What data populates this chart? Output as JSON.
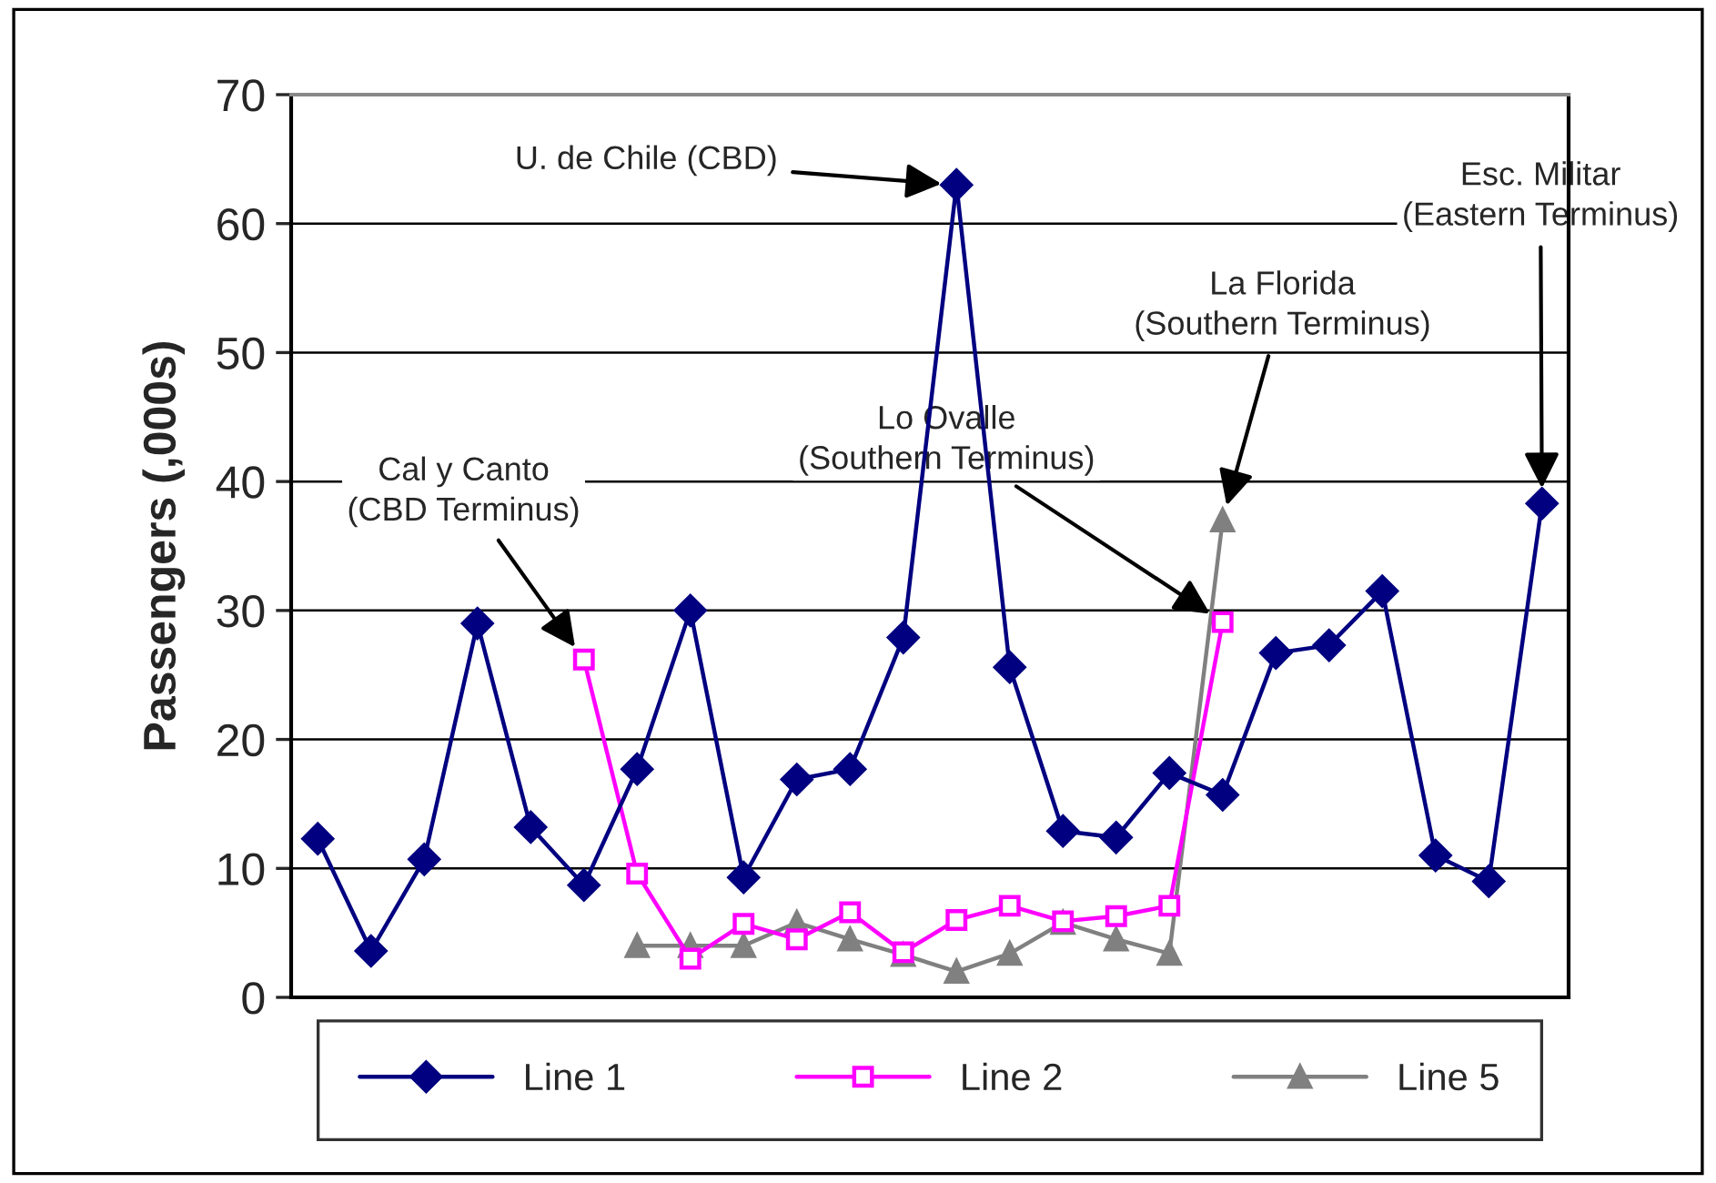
{
  "chart_data": {
    "type": "line",
    "ylabel": "Passengers (,000s)",
    "categories": [
      null,
      null,
      null,
      null,
      null,
      null,
      null,
      null,
      null,
      null,
      null,
      null,
      null,
      null,
      null,
      null,
      null,
      null,
      null,
      null,
      null,
      null,
      null,
      null
    ],
    "series": [
      {
        "name": "Line 1",
        "color": "#000080",
        "marker": "diamond",
        "values": [
          12.3,
          3.6,
          10.7,
          29,
          13.2,
          8.7,
          17.7,
          30,
          9.3,
          16.9,
          17.7,
          27.9,
          63,
          25.6,
          12.9,
          12.4,
          17.4,
          15.7,
          26.7,
          27.3,
          31.5,
          11,
          9,
          38.3
        ]
      },
      {
        "name": "Line 2",
        "color": "#ff00ff",
        "marker": "square",
        "values": [
          null,
          null,
          null,
          null,
          null,
          26.2,
          9.6,
          3,
          5.7,
          4.5,
          6.6,
          3.5,
          6,
          7.1,
          5.9,
          6.3,
          7.1,
          29.1,
          null,
          null,
          null,
          null,
          null,
          null
        ]
      },
      {
        "name": "Line 5",
        "color": "#808080",
        "marker": "triangle",
        "values": [
          null,
          null,
          null,
          null,
          null,
          null,
          4,
          4,
          4,
          5.8,
          4.5,
          3.3,
          2,
          3.4,
          5.8,
          4.5,
          3.4,
          37,
          null,
          null,
          null,
          null,
          null,
          null
        ]
      }
    ],
    "ylim": [
      0,
      70
    ],
    "yticks": [
      0,
      10,
      20,
      30,
      40,
      50,
      60,
      70
    ],
    "grid": "y",
    "legend": "bottom",
    "annotations": [
      "U. de Chile (CBD)",
      "Cal y Canto\n(CBD Terminus)",
      "Lo Ovalle\n(Southern Terminus)",
      "La Florida\n(Southern Terminus)",
      "Esc. Militar\n(Eastern Terminus)"
    ]
  }
}
